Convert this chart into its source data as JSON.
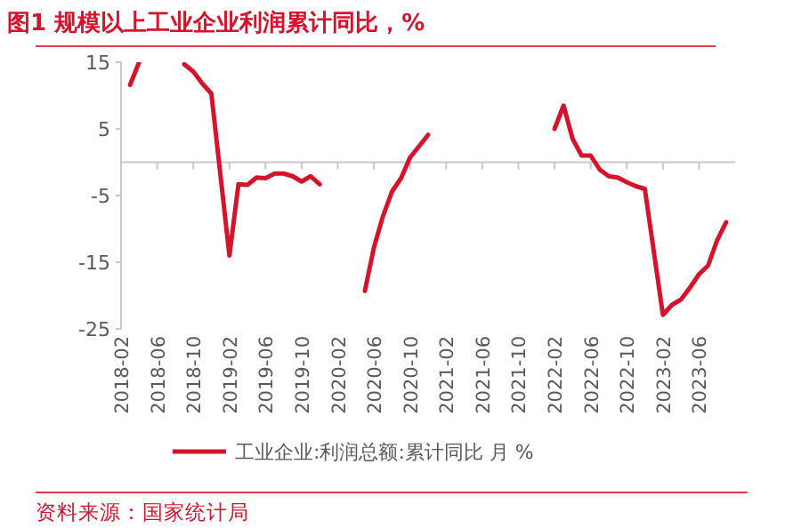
{
  "chart_data": {
    "type": "line",
    "title": "图1  规模以上工业企业利润累计同比，%",
    "series": [
      {
        "name": "工业企业:利润总额:累计同比 月 %",
        "color": "#d7132b",
        "x": [
          "2018-03",
          "2018-04"
        ],
        "values": [
          11.6,
          15.0
        ]
      },
      {
        "color": "#d7132b",
        "x": [
          "2018-09",
          "2018-10",
          "2018-11",
          "2018-12",
          "2019-02",
          "2019-03",
          "2019-04",
          "2019-05",
          "2019-06",
          "2019-07",
          "2019-08",
          "2019-09",
          "2019-10",
          "2019-11",
          "2019-12"
        ],
        "values": [
          14.7,
          13.6,
          11.8,
          10.3,
          -14.0,
          -3.3,
          -3.4,
          -2.3,
          -2.4,
          -1.7,
          -1.7,
          -2.1,
          -2.9,
          -2.1,
          -3.3
        ]
      },
      {
        "color": "#d7132b",
        "x": [
          "2020-05",
          "2020-06",
          "2020-07",
          "2020-08",
          "2020-09",
          "2020-10",
          "2020-11",
          "2020-12"
        ],
        "values": [
          -19.3,
          -12.8,
          -8.1,
          -4.4,
          -2.4,
          0.7,
          2.4,
          4.1
        ]
      },
      {
        "color": "#d7132b",
        "x": [
          "2022-02",
          "2022-03",
          "2022-04",
          "2022-05",
          "2022-06",
          "2022-07",
          "2022-08",
          "2022-09",
          "2022-10",
          "2022-11",
          "2022-12",
          "2023-02",
          "2023-03",
          "2023-04",
          "2023-05",
          "2023-06",
          "2023-07",
          "2023-08",
          "2023-09"
        ],
        "values": [
          5.0,
          8.5,
          3.5,
          1.0,
          1.0,
          -1.1,
          -2.1,
          -2.3,
          -3.0,
          -3.6,
          -4.0,
          -22.9,
          -21.4,
          -20.6,
          -18.8,
          -16.8,
          -15.5,
          -11.7,
          -9.0
        ]
      }
    ],
    "xlim": [
      "2018-02",
      "2023-10"
    ],
    "xticks": [
      "2018-02",
      "2018-06",
      "2018-10",
      "2019-02",
      "2019-06",
      "2019-10",
      "2020-02",
      "2020-06",
      "2020-10",
      "2021-02",
      "2021-06",
      "2021-10",
      "2022-02",
      "2022-06",
      "2022-10",
      "2023-02",
      "2023-06"
    ],
    "ylim": [
      -25,
      15
    ],
    "yticks": [
      15,
      5,
      -5,
      -15,
      -25
    ],
    "grid": false,
    "legend": "bottom",
    "annotations": [
      "资料来源：国家统计局"
    ]
  }
}
